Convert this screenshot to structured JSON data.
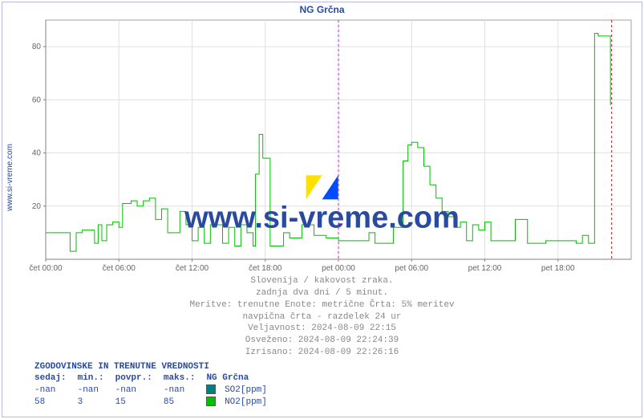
{
  "title": "NG Grčna",
  "outer_ylabel": "www.si-vreme.com",
  "watermark_text": "www.si-vreme.com",
  "chart": {
    "type": "line-step",
    "background_color": "#ffffff",
    "plot_bg": "#ffffff",
    "grid_color": "#e0e0e0",
    "axis_color": "#808080",
    "canvas_border": "#a0a0a0",
    "ylim": [
      0,
      90
    ],
    "yticks": [
      20,
      40,
      60,
      80
    ],
    "x_start_hour": 0,
    "x_end_hour": 48,
    "xtick_every": 6,
    "xticks": [
      "čet 00:00",
      "čet 06:00",
      "čet 12:00",
      "čet 18:00",
      "pet 00:00",
      "pet 06:00",
      "pet 12:00",
      "pet 18:00"
    ],
    "day_boundary_hour": 24,
    "day_boundary_color": "#ff00ff",
    "now_marker_hour": 46.4,
    "now_marker_color": "#ff0000",
    "series": [
      {
        "name": "NO2[ppm]",
        "color": "#00c000",
        "line_width": 1,
        "data": [
          [
            0,
            10
          ],
          [
            0.5,
            10
          ],
          [
            1,
            10
          ],
          [
            2,
            3
          ],
          [
            2.5,
            10
          ],
          [
            3,
            11
          ],
          [
            4,
            6
          ],
          [
            4.3,
            13
          ],
          [
            4.6,
            7
          ],
          [
            5,
            13
          ],
          [
            5.5,
            14
          ],
          [
            6,
            12
          ],
          [
            6.3,
            21
          ],
          [
            7,
            22
          ],
          [
            7.5,
            20
          ],
          [
            8,
            22
          ],
          [
            8.5,
            23
          ],
          [
            9,
            15
          ],
          [
            9.5,
            19
          ],
          [
            10,
            10
          ],
          [
            10.5,
            10
          ],
          [
            11,
            18
          ],
          [
            11.5,
            13
          ],
          [
            12,
            7
          ],
          [
            12.5,
            12
          ],
          [
            13,
            6
          ],
          [
            13.5,
            13
          ],
          [
            14,
            13
          ],
          [
            14.5,
            6
          ],
          [
            15,
            12
          ],
          [
            15.5,
            5
          ],
          [
            16,
            13
          ],
          [
            16.5,
            10
          ],
          [
            17,
            5
          ],
          [
            17.2,
            32
          ],
          [
            17.5,
            47
          ],
          [
            17.8,
            38
          ],
          [
            18.4,
            5
          ],
          [
            19,
            5
          ],
          [
            19.5,
            10
          ],
          [
            20,
            8
          ],
          [
            21,
            13
          ],
          [
            22,
            9
          ],
          [
            23,
            8
          ],
          [
            24,
            7
          ],
          [
            25,
            7
          ],
          [
            26,
            7
          ],
          [
            26.5,
            10
          ],
          [
            27,
            6
          ],
          [
            27.5,
            6
          ],
          [
            28,
            6
          ],
          [
            28.5,
            12
          ],
          [
            29,
            12
          ],
          [
            29.3,
            37
          ],
          [
            29.7,
            43
          ],
          [
            30,
            44
          ],
          [
            30.5,
            42
          ],
          [
            31,
            35
          ],
          [
            31.5,
            28
          ],
          [
            32,
            23
          ],
          [
            32.5,
            18
          ],
          [
            33,
            16
          ],
          [
            33.5,
            12
          ],
          [
            34,
            14
          ],
          [
            34.5,
            7
          ],
          [
            35,
            13
          ],
          [
            35.5,
            11
          ],
          [
            36,
            14
          ],
          [
            36.5,
            7
          ],
          [
            37,
            7
          ],
          [
            37.5,
            7
          ],
          [
            38,
            7
          ],
          [
            38.5,
            15
          ],
          [
            39,
            15
          ],
          [
            39.5,
            6
          ],
          [
            40,
            6
          ],
          [
            41,
            7
          ],
          [
            42,
            7
          ],
          [
            43,
            7
          ],
          [
            43.5,
            6
          ],
          [
            44,
            9
          ],
          [
            44.5,
            6
          ],
          [
            45,
            85
          ],
          [
            45.3,
            84
          ],
          [
            46,
            84
          ],
          [
            46.3,
            58
          ]
        ]
      },
      {
        "name": "SO2[ppm]",
        "color": "#008080",
        "line_width": 1,
        "data": []
      }
    ]
  },
  "footer": {
    "line1": "Slovenija / kakovost zraka.",
    "line2": "zadnja dva dni / 5 minut.",
    "line3": "Meritve: trenutne  Enote: metrične  Črta: 5% meritev",
    "line4": "navpična črta - razdelek 24 ur",
    "line5": "Veljavnost: 2024-08-09 22:15",
    "line6": "Osveženo: 2024-08-09 22:24:39",
    "line7": "Izrisano: 2024-08-09 22:26:16"
  },
  "table": {
    "header": "ZGODOVINSKE IN TRENUTNE VREDNOSTI",
    "cols": [
      "sedaj:",
      "min.:",
      "povpr.:",
      "maks.:"
    ],
    "station_label": "NG Grčna",
    "rows": [
      {
        "legend": "SO2[ppm]",
        "swatch": "#008080",
        "sedaj": "-nan",
        "min": "-nan",
        "povpr": "-nan",
        "maks": "-nan"
      },
      {
        "legend": "NO2[ppm]",
        "swatch": "#00c000",
        "sedaj": "58",
        "min": "3",
        "povpr": "15",
        "maks": "85"
      }
    ]
  },
  "logo": {
    "yellow": "#ffe100",
    "blue": "#004cff",
    "white": "#ffffff"
  }
}
